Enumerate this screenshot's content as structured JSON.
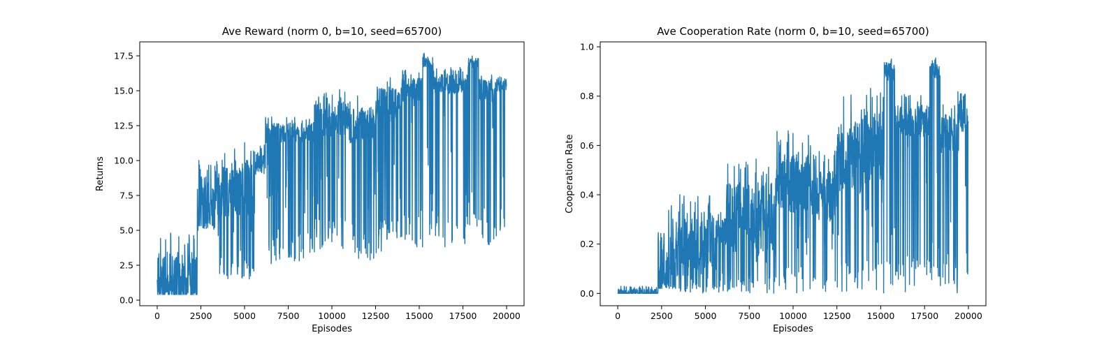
{
  "chart_data": [
    {
      "type": "line",
      "title": "Ave Reward (norm 0, b=10, seed=65700)",
      "xlabel": "Episodes",
      "ylabel": "Returns",
      "xlim": [
        -1000,
        21000
      ],
      "ylim": [
        -0.4,
        18.5
      ],
      "xticks": [
        0,
        2500,
        5000,
        7500,
        10000,
        12500,
        15000,
        17500,
        20000
      ],
      "xtick_labels": [
        "0",
        "2500",
        "5000",
        "7500",
        "10000",
        "12500",
        "15000",
        "17500",
        "20000"
      ],
      "yticks": [
        0,
        2.5,
        5,
        7.5,
        10,
        12.5,
        15,
        17.5
      ],
      "ytick_labels": [
        "0.0",
        "2.5",
        "5.0",
        "7.5",
        "10.0",
        "12.5",
        "15.0",
        "17.5"
      ],
      "grid": false,
      "color": "#1f77b4",
      "segments": [
        [
          0,
          2300,
          0.4,
          1.4,
          4.8
        ],
        [
          2300,
          3300,
          5.0,
          7.0,
          10.1
        ],
        [
          3300,
          5600,
          1.5,
          8.0,
          11.4
        ],
        [
          5600,
          6200,
          9.0,
          10.0,
          11.2
        ],
        [
          6200,
          9000,
          2.6,
          12.0,
          13.2
        ],
        [
          9000,
          11000,
          3.6,
          13.0,
          15.1
        ],
        [
          11000,
          12500,
          2.7,
          12.5,
          14.7
        ],
        [
          12500,
          14000,
          3.0,
          14.0,
          16.2
        ],
        [
          14000,
          15200,
          3.8,
          15.0,
          16.5
        ],
        [
          15200,
          15800,
          4.6,
          17.0,
          17.7
        ],
        [
          15800,
          17800,
          3.6,
          15.5,
          16.7
        ],
        [
          17800,
          18400,
          5.0,
          17.0,
          17.6
        ],
        [
          18400,
          19400,
          3.8,
          15.0,
          16.4
        ],
        [
          19400,
          20000,
          4.1,
          15.5,
          16.4
        ]
      ]
    },
    {
      "type": "line",
      "title": "Ave Cooperation Rate (norm 0, b=10, seed=65700)",
      "xlabel": "Episodes",
      "ylabel": "Cooperation Rate",
      "xlim": [
        -1000,
        21000
      ],
      "ylim": [
        -0.05,
        1.02
      ],
      "xticks": [
        0,
        2500,
        5000,
        7500,
        10000,
        12500,
        15000,
        17500,
        20000
      ],
      "xtick_labels": [
        "0",
        "2500",
        "5000",
        "7500",
        "10000",
        "12500",
        "15000",
        "17500",
        "20000"
      ],
      "yticks": [
        0,
        0.2,
        0.4,
        0.6,
        0.8,
        1.0
      ],
      "ytick_labels": [
        "0.0",
        "0.2",
        "0.4",
        "0.6",
        "0.8",
        "1.0"
      ],
      "grid": false,
      "color": "#1f77b4",
      "segments": [
        [
          0,
          2300,
          0.0,
          0.0,
          0.03
        ],
        [
          2300,
          3300,
          0.02,
          0.12,
          0.36
        ],
        [
          3300,
          5600,
          0.0,
          0.2,
          0.42
        ],
        [
          5600,
          6200,
          0.0,
          0.25,
          0.34
        ],
        [
          6200,
          9000,
          0.0,
          0.3,
          0.55
        ],
        [
          9000,
          11000,
          0.0,
          0.45,
          0.66
        ],
        [
          11000,
          12500,
          0.0,
          0.4,
          0.58
        ],
        [
          12500,
          14000,
          0.0,
          0.55,
          0.81
        ],
        [
          14000,
          15200,
          0.0,
          0.6,
          0.85
        ],
        [
          15200,
          15800,
          0.02,
          0.9,
          0.96
        ],
        [
          15800,
          17800,
          0.0,
          0.7,
          0.81
        ],
        [
          17800,
          18400,
          0.05,
          0.9,
          0.96
        ],
        [
          18400,
          19400,
          0.0,
          0.65,
          0.79
        ],
        [
          19400,
          20000,
          0.03,
          0.72,
          0.83
        ]
      ]
    }
  ]
}
